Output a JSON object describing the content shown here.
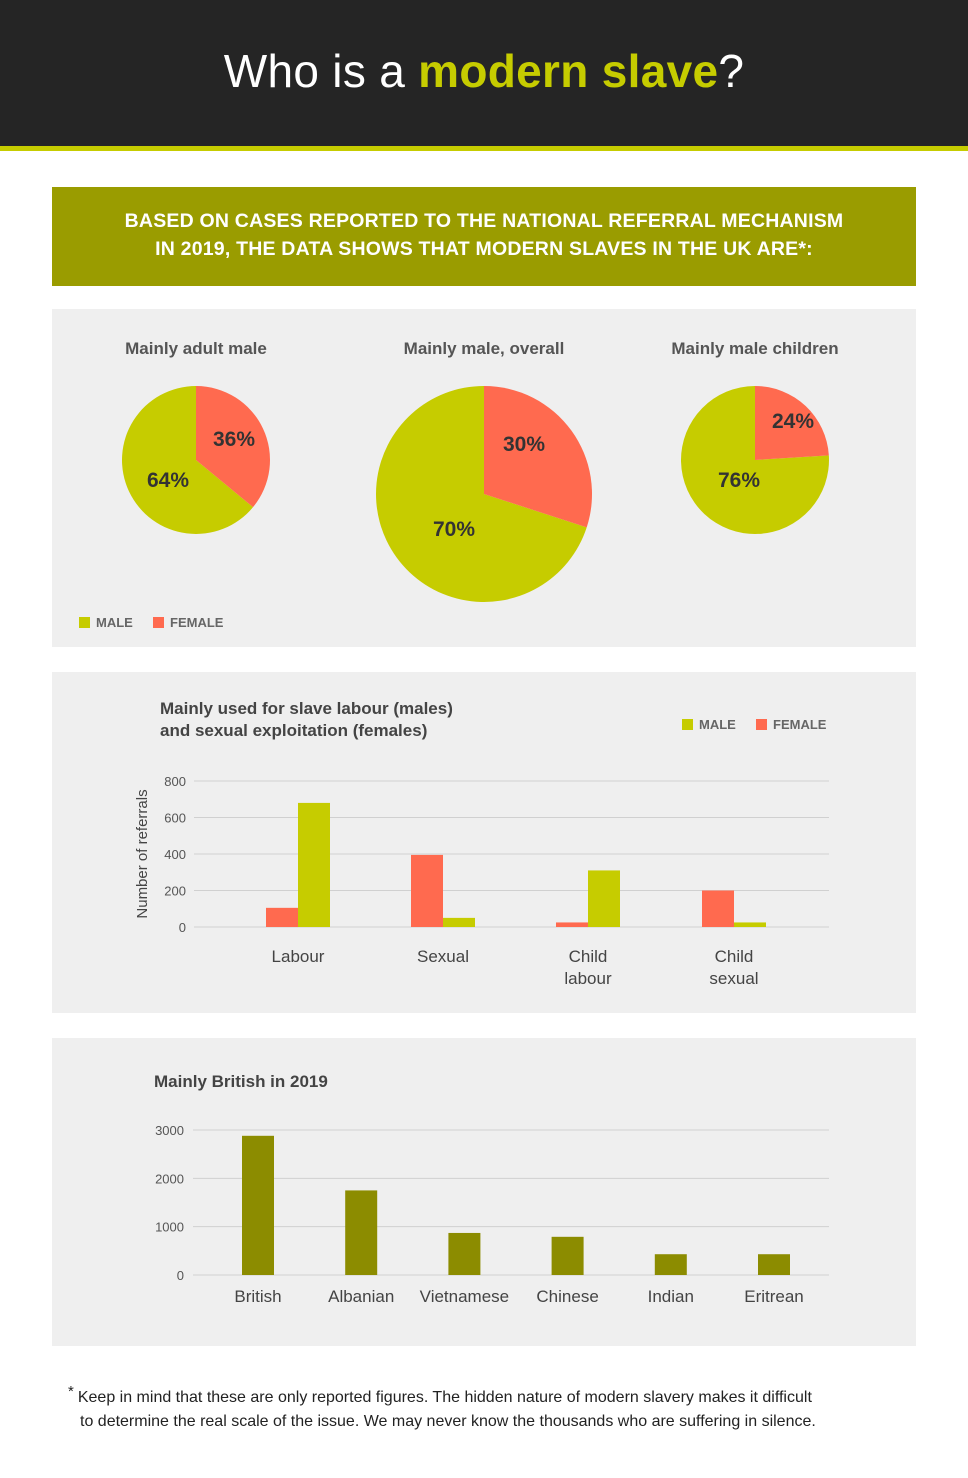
{
  "header": {
    "title_pre": "Who is a ",
    "title_accent": "modern slave",
    "title_post": "?"
  },
  "banner": {
    "line1": "BASED ON CASES REPORTED TO THE NATIONAL REFERRAL MECHANISM",
    "line2": "IN 2019, THE DATA SHOWS THAT MODERN SLAVES IN THE UK ARE*:"
  },
  "colors": {
    "male": "#c6cc00",
    "female": "#ff6a4f",
    "nationality_bar": "#8c8c00",
    "grid": "#d0d0d0"
  },
  "legend": {
    "male": "MALE",
    "female": "FEMALE"
  },
  "chart_data": [
    {
      "type": "pie",
      "title": "Mainly adult male",
      "slices": [
        {
          "name": "MALE",
          "value": 64,
          "label": "64%"
        },
        {
          "name": "FEMALE",
          "value": 36,
          "label": "36%"
        }
      ]
    },
    {
      "type": "pie",
      "title": "Mainly male, overall",
      "slices": [
        {
          "name": "MALE",
          "value": 70,
          "label": "70%"
        },
        {
          "name": "FEMALE",
          "value": 30,
          "label": "30%"
        }
      ]
    },
    {
      "type": "pie",
      "title": "Mainly male children",
      "slices": [
        {
          "name": "MALE",
          "value": 76,
          "label": "76%"
        },
        {
          "name": "FEMALE",
          "value": 24,
          "label": "24%"
        }
      ]
    },
    {
      "type": "bar",
      "title_line1": "Mainly used for slave labour (males)",
      "title_line2": "and sexual exploitation (females)",
      "ylabel": "Number of referrals",
      "ylim": [
        0,
        800
      ],
      "yticks": [
        "0",
        "200",
        "400",
        "600",
        "800"
      ],
      "categories": [
        [
          "Labour"
        ],
        [
          "Sexual"
        ],
        [
          "Child",
          "labour"
        ],
        [
          "Child",
          "sexual"
        ]
      ],
      "series": [
        {
          "name": "FEMALE",
          "values": [
            105,
            395,
            25,
            200
          ]
        },
        {
          "name": "MALE",
          "values": [
            680,
            50,
            310,
            25
          ]
        }
      ],
      "legend_position": "top-right"
    },
    {
      "type": "bar",
      "title": "Mainly British in 2019",
      "ylim": [
        0,
        3000
      ],
      "yticks": [
        "0",
        "1000",
        "2000",
        "3000"
      ],
      "categories": [
        "British",
        "Albanian",
        "Vietnamese",
        "Chinese",
        "Indian",
        "Eritrean"
      ],
      "values": [
        2880,
        1750,
        870,
        790,
        430,
        430
      ]
    }
  ],
  "footnote": {
    "mark": "*",
    "line1": "Keep in mind that these are only reported figures. The hidden nature of modern slavery makes it difficult",
    "line2": "to determine the real scale of the issue. We may never know the thousands who are suffering in silence."
  }
}
